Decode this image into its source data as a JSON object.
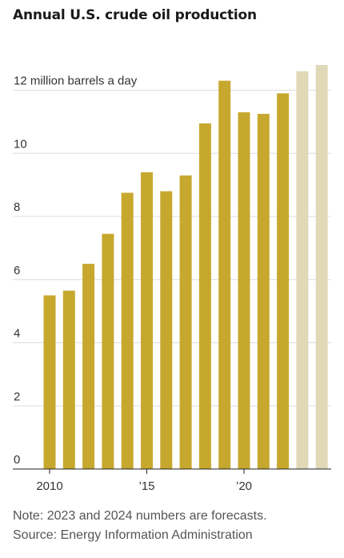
{
  "chart_data": {
    "type": "bar",
    "title": "Annual U.S. crude oil production",
    "unit_label": "12 million barrels a day",
    "x": [
      2010,
      2011,
      2012,
      2013,
      2014,
      2015,
      2016,
      2017,
      2018,
      2019,
      2020,
      2021,
      2022,
      2023,
      2024
    ],
    "values": [
      5.5,
      5.65,
      6.5,
      7.45,
      8.75,
      9.4,
      8.8,
      9.3,
      10.95,
      12.3,
      11.3,
      11.25,
      11.9,
      12.6,
      12.8
    ],
    "forecast_from": 2023,
    "ylim": [
      0,
      13
    ],
    "yticks": [
      0,
      2,
      4,
      6,
      8,
      10,
      12
    ],
    "ytick_labels": [
      "0",
      "2",
      "4",
      "6",
      "8",
      "10",
      "12 million barrels a day"
    ],
    "xticks": [
      {
        "x": 2010,
        "label": "2010"
      },
      {
        "x": 2015,
        "label": "’15"
      },
      {
        "x": 2020,
        "label": "’20"
      }
    ],
    "grid": true,
    "colors": {
      "actual": "#c7a82e",
      "forecast": "#e0d9b8",
      "grid": "#dddddd",
      "axis": "#222222"
    }
  },
  "notes": {
    "note": "Note: 2023 and 2024 numbers are forecasts.",
    "source": "Source: Energy Information Administration"
  }
}
